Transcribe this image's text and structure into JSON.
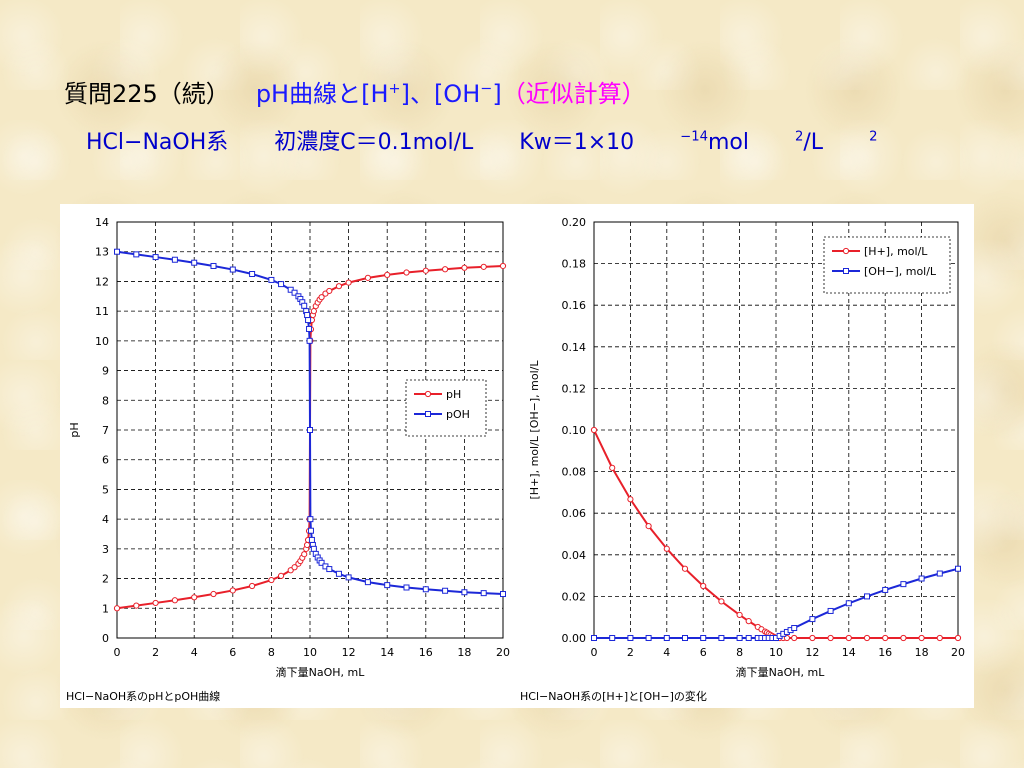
{
  "title": {
    "prefix": "質問225（続）",
    "main": "pH曲線と[H",
    "sup1": "+",
    "mid": "]、[OH",
    "sup2": "−",
    "close": "]",
    "approx": "（近似計算）"
  },
  "subtitle": {
    "system": "HCl−NaOH系",
    "conc": "初濃度C＝0.1mol/L",
    "kw_prefix": "Kw＝1×10",
    "kw_exp": "−14",
    "kw_mid": "mol",
    "kw_exp2": "2",
    "kw_end": "/L",
    "kw_exp3": "2"
  },
  "chart_data": [
    {
      "type": "line",
      "caption": "HCl−NaOH系のpHとpOH曲線",
      "xlabel": "滴下量NaOH, mL",
      "ylabel": "pH",
      "xlim": [
        0,
        20
      ],
      "ylim": [
        0,
        14
      ],
      "xticks": [
        0,
        2,
        4,
        6,
        8,
        10,
        12,
        14,
        16,
        18,
        20
      ],
      "yticks": [
        0,
        1,
        2,
        3,
        4,
        5,
        6,
        7,
        8,
        9,
        10,
        11,
        12,
        13,
        14
      ],
      "grid": true,
      "legend_position": "middle-right",
      "series": [
        {
          "name": "pH",
          "color": "#e8202a",
          "marker": "circle",
          "x": [
            0,
            1,
            2,
            3,
            4,
            5,
            6,
            7,
            8,
            8.5,
            9,
            9.2,
            9.4,
            9.5,
            9.6,
            9.7,
            9.8,
            9.85,
            9.9,
            9.95,
            9.98,
            10,
            10.02,
            10.05,
            10.1,
            10.15,
            10.2,
            10.3,
            10.4,
            10.5,
            10.6,
            10.8,
            11,
            11.5,
            12,
            13,
            14,
            15,
            16,
            17,
            18,
            19,
            20
          ],
          "y": [
            1.0,
            1.09,
            1.18,
            1.27,
            1.37,
            1.48,
            1.6,
            1.75,
            1.95,
            2.09,
            2.28,
            2.38,
            2.5,
            2.59,
            2.7,
            2.82,
            3.0,
            3.13,
            3.3,
            3.6,
            4.0,
            7.0,
            10.0,
            10.39,
            10.7,
            10.87,
            11.0,
            11.17,
            11.29,
            11.39,
            11.47,
            11.59,
            11.68,
            11.84,
            11.96,
            12.12,
            12.22,
            12.3,
            12.36,
            12.41,
            12.46,
            12.49,
            12.52
          ]
        },
        {
          "name": "pOH",
          "color": "#1c28d8",
          "marker": "square",
          "x": [
            0,
            1,
            2,
            3,
            4,
            5,
            6,
            7,
            8,
            8.5,
            9,
            9.2,
            9.4,
            9.5,
            9.6,
            9.7,
            9.8,
            9.85,
            9.9,
            9.95,
            9.98,
            10,
            10.02,
            10.05,
            10.1,
            10.15,
            10.2,
            10.3,
            10.4,
            10.5,
            10.6,
            10.8,
            11,
            11.5,
            12,
            13,
            14,
            15,
            16,
            17,
            18,
            19,
            20
          ],
          "y": [
            13.0,
            12.91,
            12.82,
            12.73,
            12.63,
            12.52,
            12.4,
            12.25,
            12.05,
            11.91,
            11.72,
            11.62,
            11.5,
            11.41,
            11.3,
            11.18,
            11.0,
            10.87,
            10.7,
            10.4,
            10.0,
            7.0,
            4.0,
            3.61,
            3.3,
            3.13,
            3.0,
            2.83,
            2.71,
            2.61,
            2.53,
            2.41,
            2.32,
            2.16,
            2.04,
            1.88,
            1.78,
            1.7,
            1.64,
            1.59,
            1.54,
            1.51,
            1.48
          ]
        }
      ]
    },
    {
      "type": "line",
      "caption": "HCl−NaOH系の[H+]と[OH−]の変化",
      "xlabel": "滴下量NaOH, mL",
      "ylabel": "[H+], mol/L  [OH−], mol/L",
      "xlim": [
        0,
        20
      ],
      "ylim": [
        0,
        0.2
      ],
      "xticks": [
        0,
        2,
        4,
        6,
        8,
        10,
        12,
        14,
        16,
        18,
        20
      ],
      "yticks": [
        "0.00",
        "0.02",
        "0.04",
        "0.06",
        "0.08",
        "0.10",
        "0.12",
        "0.14",
        "0.16",
        "0.18",
        "0.20"
      ],
      "grid": true,
      "legend_position": "top-right",
      "series": [
        {
          "name": "[H+], mol/L",
          "color": "#e8202a",
          "marker": "circle",
          "x": [
            0,
            1,
            2,
            3,
            4,
            5,
            6,
            7,
            8,
            8.5,
            9,
            9.2,
            9.4,
            9.5,
            9.6,
            9.7,
            9.8,
            9.9,
            10,
            10.1,
            10.2,
            10.4,
            10.6,
            11,
            12,
            13,
            14,
            15,
            16,
            17,
            18,
            19,
            20
          ],
          "y": [
            0.1,
            0.0818,
            0.0667,
            0.0538,
            0.0429,
            0.0333,
            0.025,
            0.0176,
            0.0111,
            0.0081,
            0.0053,
            0.0042,
            0.0031,
            0.0026,
            0.002,
            0.0015,
            0.001,
            0.0005,
            0,
            0,
            0,
            0,
            0,
            0,
            0,
            0,
            0,
            0,
            0,
            0,
            0,
            0,
            0
          ]
        },
        {
          "name": "[OH−], mol/L",
          "color": "#1c28d8",
          "marker": "square",
          "x": [
            0,
            1,
            2,
            3,
            4,
            5,
            6,
            7,
            8,
            8.5,
            9,
            9.2,
            9.4,
            9.6,
            9.8,
            10,
            10.2,
            10.4,
            10.6,
            10.8,
            11,
            12,
            13,
            14,
            15,
            16,
            17,
            18,
            19,
            20
          ],
          "y": [
            0,
            0,
            0,
            0,
            0,
            0,
            0,
            0,
            0,
            0,
            0,
            0,
            0,
            0,
            0,
            0,
            0.001,
            0.002,
            0.0029,
            0.0038,
            0.0048,
            0.0091,
            0.013,
            0.0167,
            0.02,
            0.0231,
            0.0259,
            0.0286,
            0.031,
            0.0333
          ]
        }
      ]
    }
  ]
}
